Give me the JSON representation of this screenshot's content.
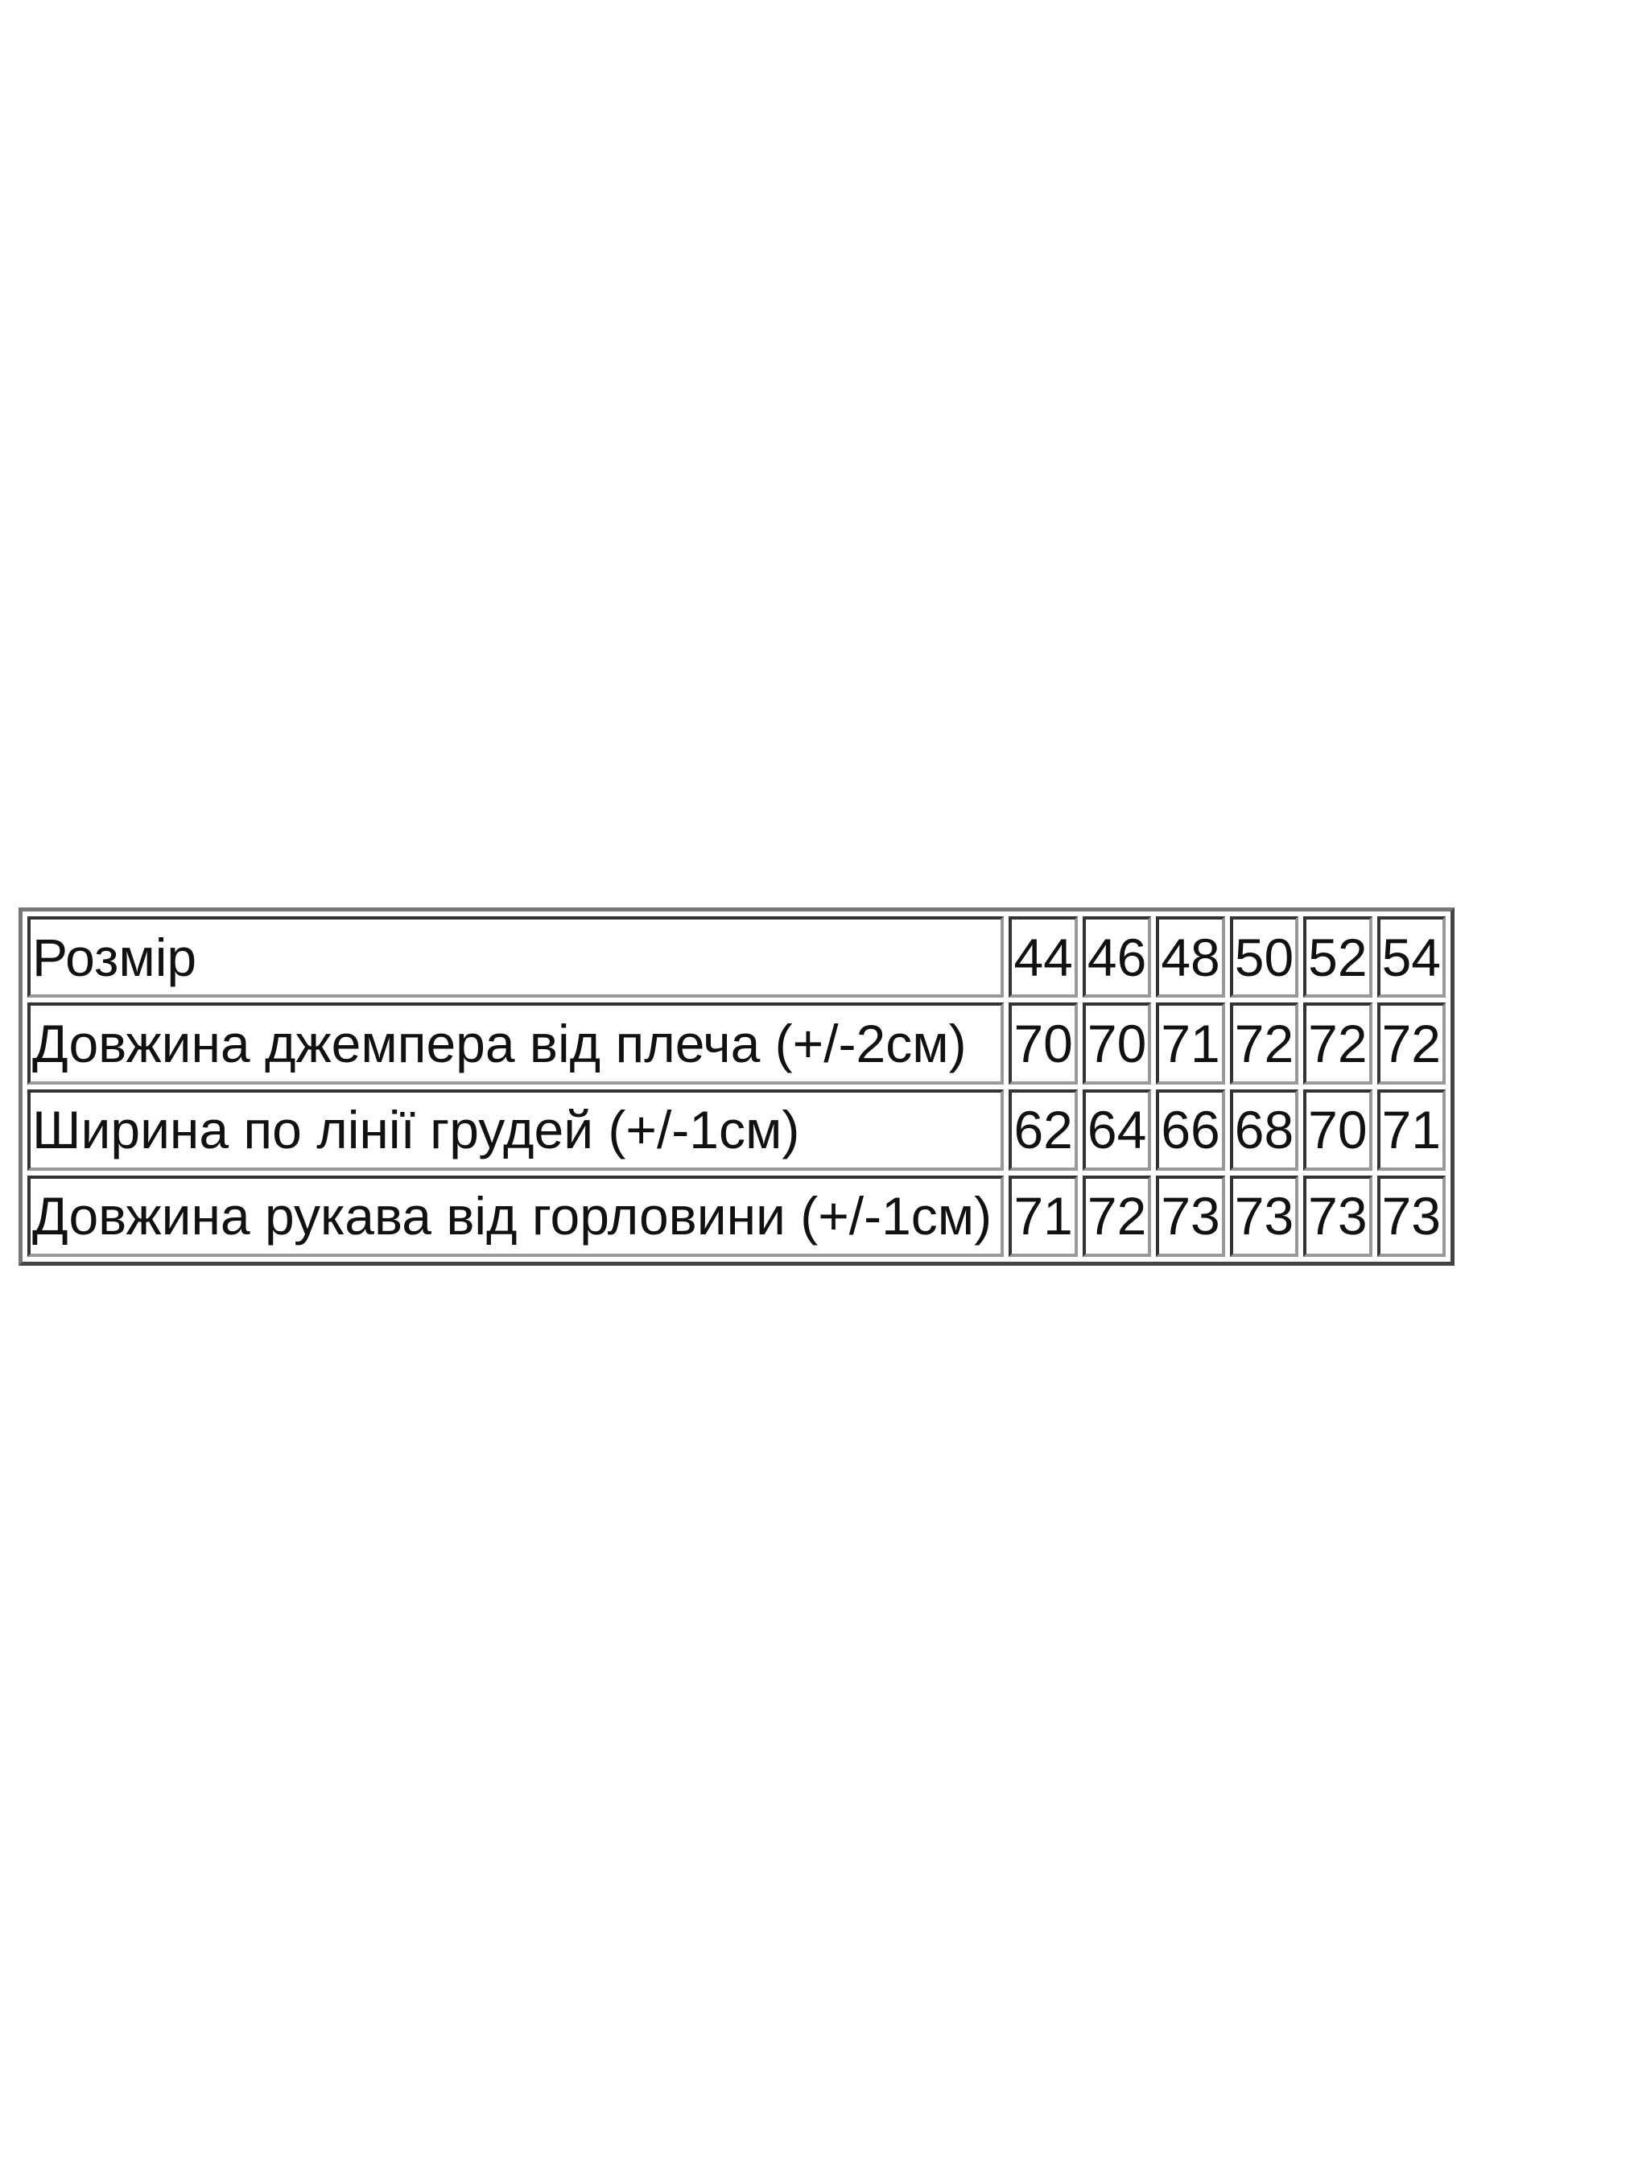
{
  "table": {
    "header": {
      "label": "Розмір",
      "sizes": [
        "44",
        "46",
        "48",
        "50",
        "52",
        "54"
      ]
    },
    "rows": [
      {
        "label": "Довжина джемпера від плеча (+/-2см)",
        "values": [
          "70",
          "70",
          "71",
          "72",
          "72",
          "72"
        ]
      },
      {
        "label": "Ширина по лінії грудей (+/-1см)",
        "values": [
          "62",
          "64",
          "66",
          "68",
          "70",
          "71"
        ]
      },
      {
        "label": "Довжина рукава від горловини (+/-1см)",
        "values": [
          "71",
          "72",
          "73",
          "73",
          "73",
          "73"
        ]
      }
    ]
  }
}
